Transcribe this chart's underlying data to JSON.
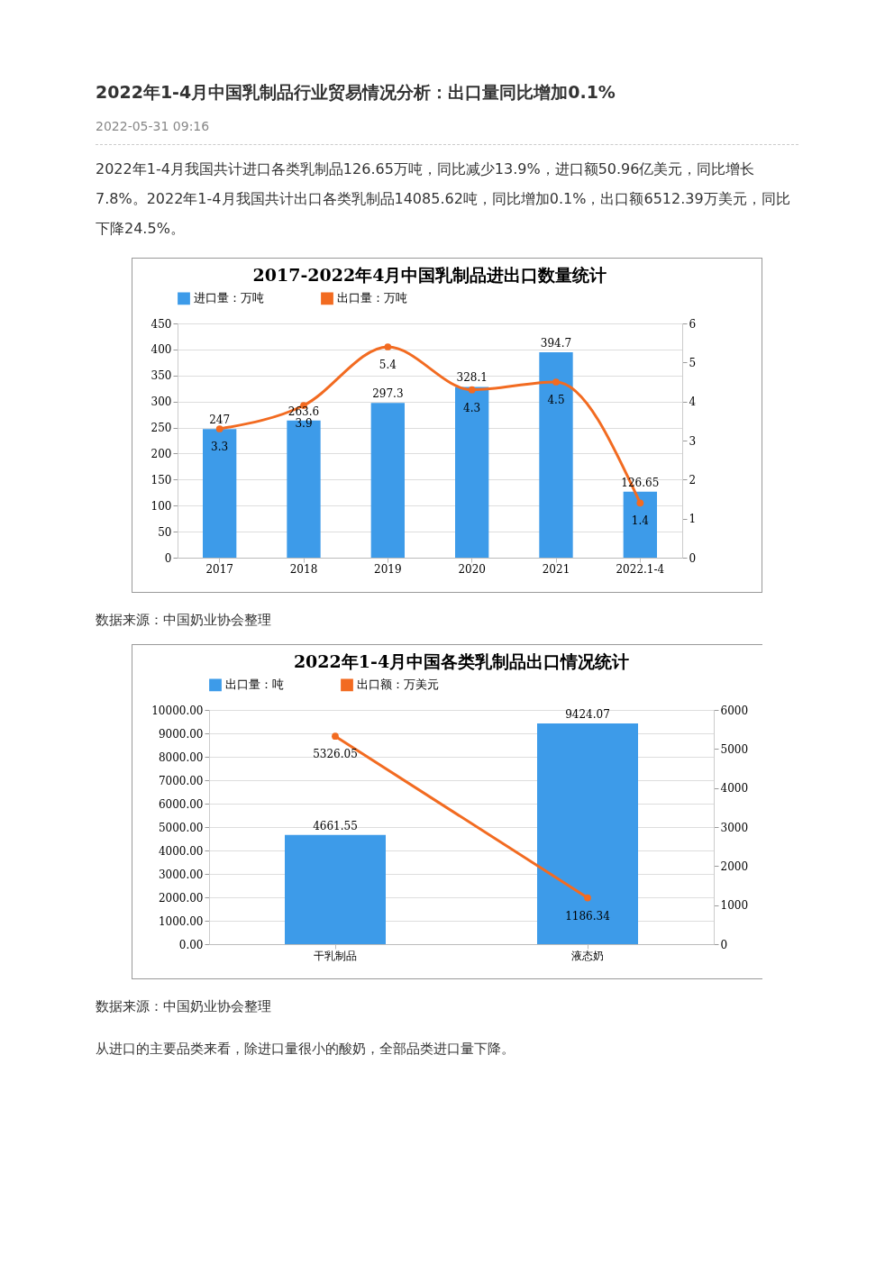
{
  "chart_data": [
    {
      "type": "bar",
      "title": "2017-2022年4月中国乳制品进出口数量统计",
      "annotations": [
        "2022年1-4月中国乳制品行业贸易情况分析：出口量同比增加0.1%",
        "2022-05-31 09:16",
        "2022年1-4月我国共计进口各类乳制品126.65万吨，同比减少13.9%，进口额50.96亿美元，同比增长7.8%。2022年1-4月我国共计出口各类乳制品14085.62吨，同比增加0.1%，出口额6512.39万美元，同比下降24.5%。",
        "数据来源：中国奶业协会整理"
      ],
      "categories": [
        "2017",
        "2018",
        "2019",
        "2020",
        "2021",
        "2022.1-4"
      ],
      "series": [
        {
          "name": "进口量：万吨",
          "color": "#3d9be9",
          "values": [
            247,
            263.6,
            297.3,
            328.1,
            394.7,
            126.65
          ]
        },
        {
          "name": "出口量：万吨",
          "type": "line",
          "axis": "y2",
          "color": "#f26b21",
          "values": [
            3.3,
            3.9,
            5.4,
            4.3,
            4.5,
            1.4
          ]
        }
      ],
      "ylim": [
        0,
        450
      ],
      "yticks": [
        0,
        50,
        100,
        150,
        200,
        250,
        300,
        350,
        400,
        450
      ],
      "y2lim": [
        0,
        6
      ],
      "y2ticks": [
        0,
        1,
        2,
        3,
        4,
        5,
        6
      ],
      "data_labels": true,
      "grid": "y",
      "legend": "top",
      "marker": "circle",
      "line_style": "solid"
    },
    {
      "type": "bar",
      "title": "2022年1-4月中国各类乳制品出口情况统计",
      "annotations": [
        "数据来源：中国奶业协会整理",
        "从进口的主要品类来看，除进口量很小的酸奶，全部品类进口量下降。"
      ],
      "categories": [
        "干乳制品",
        "液态奶"
      ],
      "series": [
        {
          "name": "出口量：吨",
          "color": "#3d9be9",
          "values": [
            4661.55,
            9424.07
          ]
        },
        {
          "name": "出口额：万美元",
          "type": "line",
          "axis": "y2",
          "color": "#f26b21",
          "values": [
            5326.05,
            1186.34
          ]
        }
      ],
      "ylim": [
        0,
        10000
      ],
      "yticks": [
        {
          "value": 0,
          "label": "0.00"
        },
        {
          "value": 1000,
          "label": "1000.00"
        },
        {
          "value": 2000,
          "label": "2000.00"
        },
        {
          "value": 3000,
          "label": "3000.00"
        },
        {
          "value": 4000,
          "label": "4000.00"
        },
        {
          "value": 5000,
          "label": "5000.00"
        },
        {
          "value": 6000,
          "label": "6000.00"
        },
        {
          "value": 7000,
          "label": "7000.00"
        },
        {
          "value": 8000,
          "label": "8000.00"
        },
        {
          "value": 9000,
          "label": "9000.00"
        },
        {
          "value": 10000,
          "label": "10000.00"
        }
      ],
      "y2lim": [
        0,
        6000
      ],
      "y2ticks": [
        0,
        {
          "value": 1000,
          "label": "1000"
        },
        {
          "value": 2000,
          "label": "2000"
        },
        {
          "value": 3000,
          "label": "3000"
        },
        {
          "value": 4000,
          "label": "4000"
        },
        {
          "value": 5000,
          "label": "5000"
        },
        {
          "value": 6000,
          "label": "6000"
        }
      ],
      "data_labels": true,
      "grid": "y",
      "legend": "top",
      "marker": "circle",
      "line_style": "solid"
    }
  ]
}
